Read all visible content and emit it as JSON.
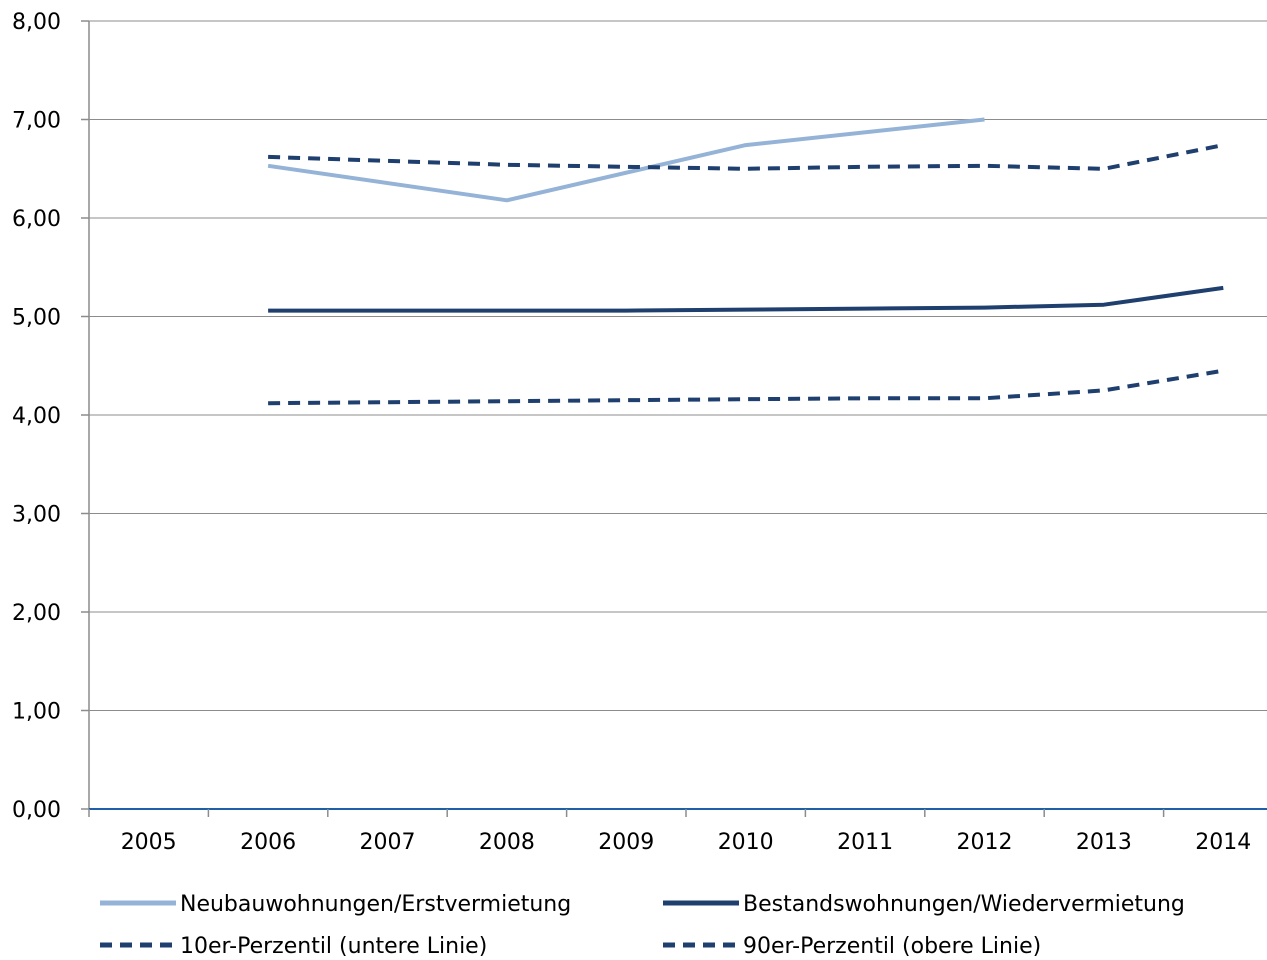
{
  "chart_data": {
    "type": "line",
    "title": "",
    "xlabel": "",
    "ylabel": "",
    "categories": [
      "2005",
      "2006",
      "2007",
      "2008",
      "2009",
      "2010",
      "2011",
      "2012",
      "2013",
      "2014"
    ],
    "y_tick_labels": [
      "0,00",
      "1,00",
      "2,00",
      "3,00",
      "4,00",
      "5,00",
      "6,00",
      "7,00",
      "8,00"
    ],
    "ylim": [
      0,
      8
    ],
    "grid": true,
    "legend_position": "bottom",
    "series": [
      {
        "name": "Neubauwohnungen/Erstvermietung",
        "values": [
          null,
          6.53,
          null,
          6.18,
          null,
          6.74,
          null,
          7.0,
          null,
          null
        ],
        "color": "#94b3d7",
        "style": "solid"
      },
      {
        "name": "Bestandswohnungen/Wiedervermietung",
        "values": [
          null,
          5.06,
          5.06,
          5.06,
          5.06,
          5.07,
          5.08,
          5.09,
          5.12,
          5.29
        ],
        "color": "#1f3f6e",
        "style": "solid"
      },
      {
        "name": "10er-Perzentil (untere Linie)",
        "values": [
          null,
          4.12,
          4.13,
          4.14,
          4.15,
          4.16,
          4.17,
          4.17,
          4.25,
          4.45
        ],
        "color": "#1f3f6e",
        "style": "dashed"
      },
      {
        "name": "90er-Perzentil (obere Linie)",
        "values": [
          null,
          6.62,
          6.58,
          6.54,
          6.52,
          6.5,
          6.52,
          6.53,
          6.5,
          6.74
        ],
        "color": "#1f3f6e",
        "style": "dashed"
      }
    ]
  }
}
